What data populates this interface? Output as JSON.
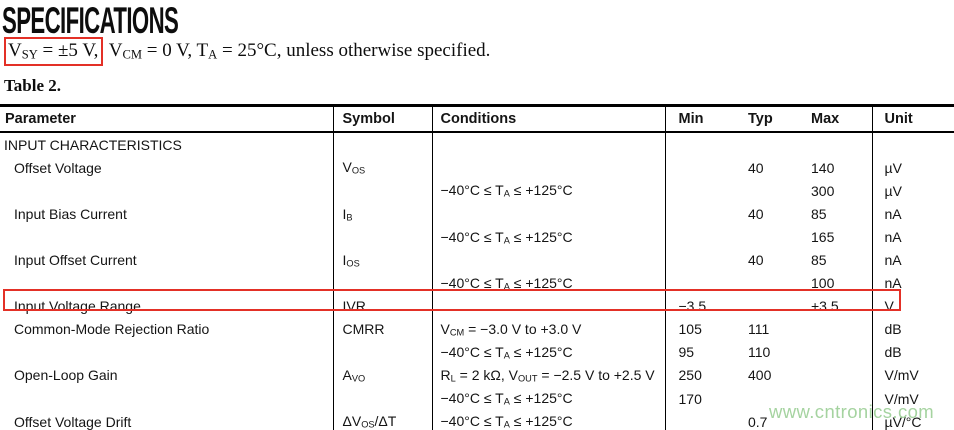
{
  "page": {
    "title": "SPECIFICATIONS",
    "subtitle_boxed": [
      [
        "V",
        0
      ],
      [
        "SY",
        1
      ],
      [
        " = ±5 V,",
        0
      ]
    ],
    "subtitle_rest": [
      [
        " V",
        0
      ],
      [
        "CM",
        1
      ],
      [
        " = 0 V, T",
        0
      ],
      [
        "A",
        1
      ],
      [
        " = 25°C, unless otherwise specified.",
        0
      ]
    ],
    "table_caption": "Table 2.",
    "watermark": "www.cntronics.com"
  },
  "colors": {
    "highlight_red": "#e33026",
    "watermark_green": "#9ccf96"
  },
  "table": {
    "headers": [
      "Parameter",
      "Symbol",
      "Conditions",
      "Min",
      "Typ",
      "Max",
      "Unit"
    ],
    "rows": [
      {
        "section": true,
        "highlight": false,
        "parameter": [
          [
            "INPUT CHARACTERISTICS",
            0
          ]
        ],
        "symbol": [],
        "conditions": [],
        "min": "",
        "typ": "",
        "max": "",
        "unit": ""
      },
      {
        "section": false,
        "highlight": false,
        "parameter": [
          [
            "Offset Voltage",
            0
          ]
        ],
        "symbol": [
          [
            "V",
            0
          ],
          [
            "OS",
            1
          ]
        ],
        "conditions": [],
        "min": "",
        "typ": "40",
        "max": "140",
        "unit": "µV"
      },
      {
        "section": false,
        "highlight": false,
        "parameter": [],
        "symbol": [],
        "conditions": [
          [
            "−40°C ≤ T",
            0
          ],
          [
            "A",
            1
          ],
          [
            " ≤ +125°C",
            0
          ]
        ],
        "min": "",
        "typ": "",
        "max": "300",
        "unit": "µV"
      },
      {
        "section": false,
        "highlight": false,
        "parameter": [
          [
            "Input Bias Current",
            0
          ]
        ],
        "symbol": [
          [
            "I",
            0
          ],
          [
            "B",
            1
          ]
        ],
        "conditions": [],
        "min": "",
        "typ": "40",
        "max": "85",
        "unit": "nA"
      },
      {
        "section": false,
        "highlight": false,
        "parameter": [],
        "symbol": [],
        "conditions": [
          [
            "−40°C ≤ T",
            0
          ],
          [
            "A",
            1
          ],
          [
            " ≤ +125°C",
            0
          ]
        ],
        "min": "",
        "typ": "",
        "max": "165",
        "unit": "nA"
      },
      {
        "section": false,
        "highlight": false,
        "parameter": [
          [
            "Input Offset Current",
            0
          ]
        ],
        "symbol": [
          [
            "I",
            0
          ],
          [
            "OS",
            1
          ]
        ],
        "conditions": [],
        "min": "",
        "typ": "40",
        "max": "85",
        "unit": "nA"
      },
      {
        "section": false,
        "highlight": false,
        "parameter": [],
        "symbol": [],
        "conditions": [
          [
            "−40°C ≤ T",
            0
          ],
          [
            "A",
            1
          ],
          [
            " ≤ +125°C",
            0
          ]
        ],
        "min": "",
        "typ": "",
        "max": "100",
        "unit": "nA"
      },
      {
        "section": false,
        "highlight": true,
        "parameter": [
          [
            "Input Voltage Range",
            0
          ]
        ],
        "symbol": [
          [
            "IVR",
            0
          ]
        ],
        "conditions": [],
        "min": "−3.5",
        "typ": "",
        "max": "+3.5",
        "unit": "V"
      },
      {
        "section": false,
        "highlight": false,
        "parameter": [
          [
            "Common-Mode Rejection Ratio",
            0
          ]
        ],
        "symbol": [
          [
            "CMRR",
            0
          ]
        ],
        "conditions": [
          [
            "V",
            0
          ],
          [
            "CM",
            1
          ],
          [
            " = −3.0 V to +3.0 V",
            0
          ]
        ],
        "min": "105",
        "typ": "111",
        "max": "",
        "unit": "dB"
      },
      {
        "section": false,
        "highlight": false,
        "parameter": [],
        "symbol": [],
        "conditions": [
          [
            "−40°C ≤ T",
            0
          ],
          [
            "A",
            1
          ],
          [
            " ≤ +125°C",
            0
          ]
        ],
        "min": "95",
        "typ": "110",
        "max": "",
        "unit": "dB"
      },
      {
        "section": false,
        "highlight": false,
        "parameter": [
          [
            "Open-Loop Gain",
            0
          ]
        ],
        "symbol": [
          [
            "A",
            0
          ],
          [
            "VO",
            1
          ]
        ],
        "conditions": [
          [
            "R",
            0
          ],
          [
            "L",
            1
          ],
          [
            " = 2 kΩ, V",
            0
          ],
          [
            "OUT",
            1
          ],
          [
            " = −2.5 V to +2.5 V",
            0
          ]
        ],
        "min": "250",
        "typ": "400",
        "max": "",
        "unit": "V/mV"
      },
      {
        "section": false,
        "highlight": false,
        "parameter": [],
        "symbol": [],
        "conditions": [
          [
            "−40°C ≤ T",
            0
          ],
          [
            "A",
            1
          ],
          [
            " ≤ +125°C",
            0
          ]
        ],
        "min": "170",
        "typ": "",
        "max": "",
        "unit": "V/mV"
      },
      {
        "section": false,
        "highlight": false,
        "parameter": [
          [
            "Offset Voltage Drift",
            0
          ]
        ],
        "symbol": [
          [
            "ΔV",
            0
          ],
          [
            "OS",
            1
          ],
          [
            "/ΔT",
            0
          ]
        ],
        "conditions": [
          [
            "−40°C ≤ T",
            0
          ],
          [
            "A",
            1
          ],
          [
            " ≤ +125°C",
            0
          ]
        ],
        "min": "",
        "typ": "0.7",
        "max": "",
        "unit": "µV/°C"
      }
    ]
  }
}
